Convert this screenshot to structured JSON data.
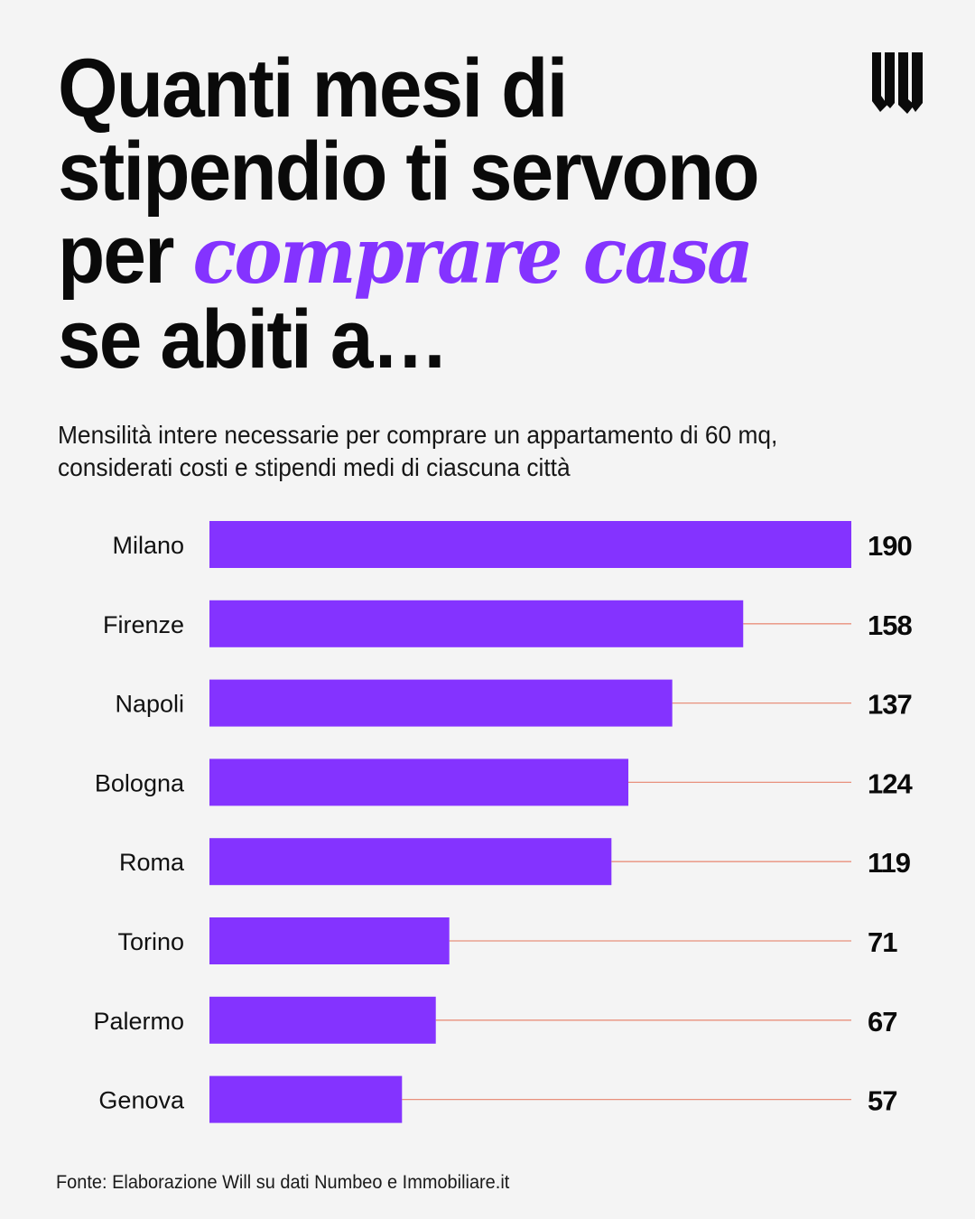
{
  "header": {
    "title_line1": "Quanti mesi di",
    "title_line2": "stipendio ti servono",
    "title_line3_prefix": "per ",
    "title_line3_accent": "comprare casa",
    "title_line4": "se abiti a…",
    "subtitle_line1": "Mensilità intere necessarie per comprare un appartamento di 60 mq,",
    "subtitle_line2": "considerati costi e stipendi medi di ciascuna città",
    "logo_icon": "will-logo-icon"
  },
  "colors": {
    "bar": "#8433ff",
    "accent": "#8433ff",
    "leader_line": "#e8907c",
    "background": "#f4f4f4",
    "text": "#0a0a0a"
  },
  "chart_data": {
    "type": "bar",
    "orientation": "horizontal",
    "title": "Quanti mesi di stipendio ti servono per comprare casa se abiti a…",
    "subtitle": "Mensilità intere necessarie per comprare un appartamento di 60 mq, considerati costi e stipendi medi di ciascuna città",
    "xlabel": "",
    "ylabel": "",
    "categories": [
      "Milano",
      "Firenze",
      "Napoli",
      "Bologna",
      "Roma",
      "Torino",
      "Palermo",
      "Genova"
    ],
    "values": [
      190,
      158,
      137,
      124,
      119,
      71,
      67,
      57
    ],
    "value_labels": [
      "190",
      "158",
      "137",
      "124",
      "119",
      "71",
      "67",
      "57"
    ],
    "xlim": [
      0,
      190
    ],
    "grid": false,
    "legend": "none",
    "data_labels": "right"
  },
  "footer": {
    "source": "Fonte: Elaborazione Will su dati Numbeo e Immobiliare.it"
  }
}
